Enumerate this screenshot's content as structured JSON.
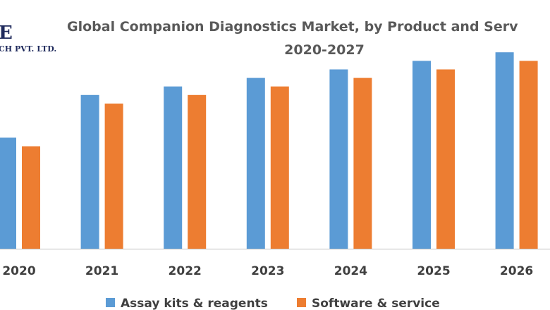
{
  "logo": {
    "line1": "E",
    "line2": "CH PVT. LTD."
  },
  "chart_data": {
    "type": "bar",
    "title": "Global Companion Diagnostics Market, by Product and Serv",
    "subtitle": "2020-2027",
    "categories": [
      "2020",
      "2021",
      "2022",
      "2023",
      "2024",
      "2025",
      "2026"
    ],
    "series": [
      {
        "name": "Assay kits & reagents",
        "color": "#5b9bd5",
        "values": [
          13,
          18,
          19,
          20,
          21,
          22,
          23
        ]
      },
      {
        "name": "Software & service",
        "color": "#ed7d31",
        "values": [
          12,
          17,
          18,
          19,
          20,
          21,
          22
        ]
      }
    ],
    "ylim": [
      0,
      25
    ],
    "grid": false,
    "legend_position": "bottom"
  }
}
